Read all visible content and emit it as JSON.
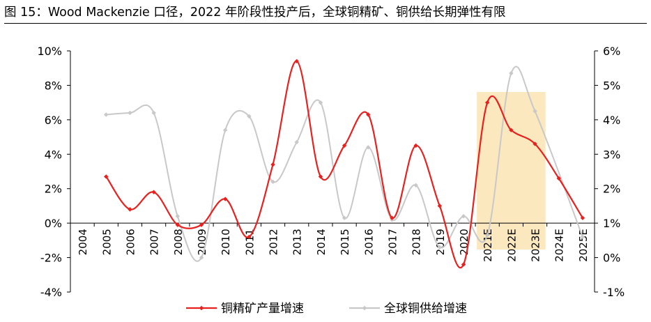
{
  "figure": {
    "title": "图 15：Wood Mackenzie 口径，2022 年阶段性投产后，全球铜精矿、铜供给长期弹性有限"
  },
  "chart_data": {
    "type": "line",
    "categories": [
      "2004",
      "2005",
      "2006",
      "2007",
      "2008",
      "2009",
      "2010",
      "2011",
      "2012",
      "2013",
      "2014",
      "2015",
      "2016",
      "2017",
      "2018",
      "2019",
      "2020",
      "2021E",
      "2022E",
      "2023E",
      "2024E",
      "2025E"
    ],
    "left_axis": {
      "ylim": [
        -4,
        10
      ],
      "ticks": [
        -4,
        -2,
        0,
        2,
        4,
        6,
        8,
        10
      ],
      "tick_labels": [
        "-4%",
        "-2%",
        "0%",
        "2%",
        "4%",
        "6%",
        "8%",
        "10%"
      ]
    },
    "right_axis": {
      "ylim": [
        -1,
        6
      ],
      "ticks": [
        -1,
        0,
        1,
        2,
        3,
        4,
        5,
        6
      ],
      "tick_labels": [
        "-1%",
        "0%",
        "1%",
        "2%",
        "3%",
        "4%",
        "5%",
        "6%"
      ]
    },
    "series": [
      {
        "name": "铜精矿产量增速",
        "axis": "left",
        "color": "#e8201e",
        "smooth": true,
        "marker": "diamond",
        "values": [
          null,
          2.7,
          0.8,
          1.8,
          -0.1,
          -0.1,
          1.4,
          -0.8,
          3.4,
          9.4,
          2.7,
          4.5,
          6.3,
          0.3,
          4.5,
          1.0,
          -2.4,
          7.0,
          5.4,
          4.6,
          2.6,
          0.3
        ]
      },
      {
        "name": "全球铜供给增速",
        "axis": "right",
        "color": "#c8c8c8",
        "smooth": true,
        "marker": "diamond",
        "values": [
          null,
          4.15,
          4.2,
          4.2,
          1.2,
          0.0,
          3.7,
          4.1,
          2.2,
          3.35,
          4.5,
          1.15,
          3.2,
          1.1,
          2.1,
          0.3,
          1.2,
          0.65,
          5.35,
          4.25,
          null,
          0.6
        ]
      }
    ],
    "highlight": {
      "from": "2021E",
      "to": "2023E",
      "color": "#fbe5b8"
    },
    "legend_position": "bottom",
    "grid": false
  }
}
